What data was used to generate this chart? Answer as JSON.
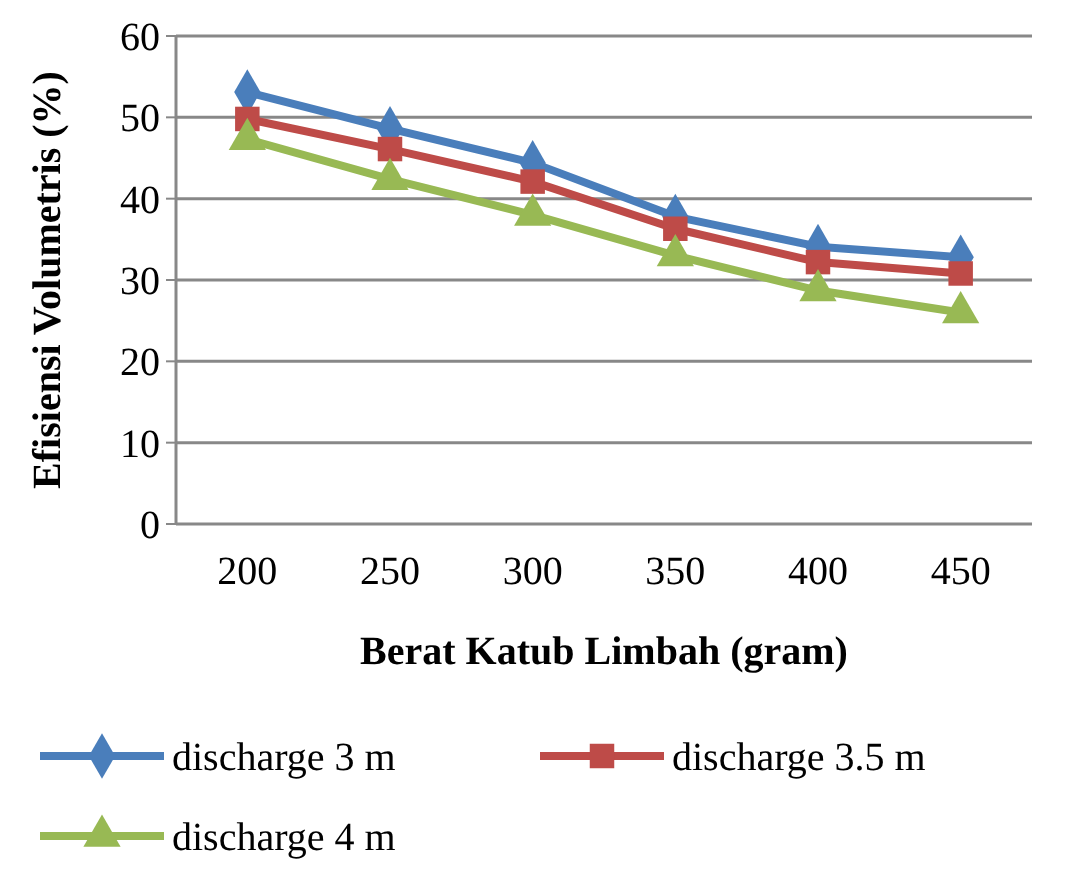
{
  "chart_data": {
    "type": "line",
    "xlabel": "Berat Katub Limbah (gram)",
    "ylabel": "Efisiensi Volumetris (%)",
    "categories": [
      "200",
      "250",
      "300",
      "350",
      "400",
      "450"
    ],
    "ylim": [
      0,
      60
    ],
    "yticks": [
      0,
      10,
      20,
      30,
      40,
      50,
      60
    ],
    "grid": "y",
    "legend": "bottom",
    "line_style": "solid",
    "series": [
      {
        "name": "discharge 3 m",
        "color": "#4a7ebb",
        "marker": "diamond",
        "values": [
          53.1,
          48.6,
          44.4,
          37.8,
          34.1,
          32.8
        ]
      },
      {
        "name": "discharge 3.5 m",
        "color": "#be4b48",
        "marker": "square",
        "values": [
          49.8,
          46.1,
          42.1,
          36.3,
          32.2,
          30.8
        ]
      },
      {
        "name": "discharge 4 m",
        "color": "#98b954",
        "marker": "triangle",
        "values": [
          47.3,
          42.4,
          38.0,
          33.0,
          28.7,
          26.0
        ]
      }
    ]
  }
}
